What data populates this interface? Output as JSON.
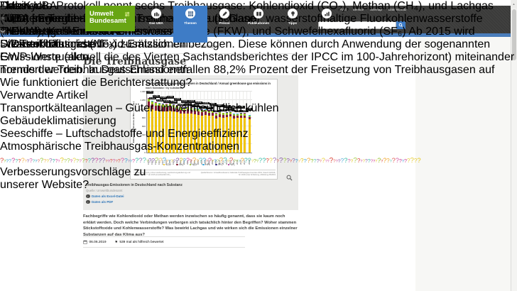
{
  "header": {
    "logo": {
      "line1": "Umwelt",
      "line2": "Bundesamt"
    },
    "top_links": [
      "Start",
      "Service",
      "Sitemap",
      "Datenschutz"
    ],
    "nav": [
      {
        "label": "Das UBA",
        "icon": "building-icon",
        "active": false
      },
      {
        "label": "Themen",
        "icon": "grid-icon",
        "active": true
      },
      {
        "label": "Presse",
        "icon": "pen-icon",
        "active": false
      },
      {
        "label": "Publikationen",
        "icon": "book-icon",
        "active": false
      },
      {
        "label": "Tipps",
        "icon": "bulb-icon",
        "active": false
      },
      {
        "label": "Daten",
        "icon": "chart-icon",
        "active": false
      }
    ]
  },
  "breadcrumb": [
    "Themen",
    "Klima | Energie",
    "Treibhausgas-Emissionen",
    "Die Treibhausgase"
  ],
  "page": {
    "title": "Die Treibhausgase"
  },
  "figure": {
    "caption_title": "Treibhausgas-Emissionen in Deutschland nach Substanz",
    "source": "Quelle: Umweltbundesamt",
    "downloads": [
      "Daten als Excel-Datei",
      "Daten als PDF"
    ]
  },
  "chart_data": {
    "type": "bar",
    "stacked": true,
    "title": "Jährliche Treibhausgas-Emissionen in Deutschland / Annual greenhouse gas emissions in",
    "subtitle": "nach Substanz / by substance",
    "ylabel": "Emissionen / Emissions (in Mio. t CO₂ equ.)",
    "ylim": [
      0,
      1400
    ],
    "yticks": [
      0,
      200,
      400,
      600,
      800,
      1000,
      1200,
      1400
    ],
    "categories": [
      "1990",
      "1991",
      "1992",
      "1993",
      "1994",
      "1995",
      "1996",
      "1997",
      "1998",
      "1999",
      "2000",
      "2001",
      "2002",
      "2003",
      "2004",
      "2005",
      "2006",
      "2007",
      "2008",
      "2009",
      "2010",
      "2011",
      "2012",
      "2013",
      "2014",
      "2015",
      "2016",
      "2017",
      "2018*"
    ],
    "totals": [
      1251,
      1194,
      1154,
      1145,
      1125,
      1120,
      1141,
      1106,
      1088,
      1052,
      1043,
      1057,
      1037,
      1030,
      1012,
      992,
      1001,
      972,
      975,
      906,
      942,
      920,
      925,
      942,
      901,
      902,
      909,
      905,
      866
    ],
    "series": [
      {
        "name": "CO₂*",
        "color": "#f0c300",
        "fraction_start": 0.836,
        "fraction_end": 0.884
      },
      {
        "name": "CH₄*",
        "color": "#871d33",
        "fraction_start": 0.096,
        "fraction_end": 0.058
      },
      {
        "name": "N₂O*",
        "color": "#95c11f",
        "fraction_start": 0.053,
        "fraction_end": 0.043
      },
      {
        "name": "HFC",
        "color": "#36a9e1",
        "fraction_start": 0.005,
        "fraction_end": 0.011
      },
      {
        "name": "PFC",
        "color": "#312783",
        "fraction_start": 0.004,
        "fraction_end": 0.002
      },
      {
        "name": "SF₆",
        "color": "#a3198b",
        "fraction_start": 0.006,
        "fraction_end": 0.004
      }
    ],
    "legend_position": "bottom",
    "grid": true,
    "footnote_left": "* Kohlendioxid (CO₂) ohne Landnutzung, Landnutzungsänderung und Forstwirtschaft; ** ab 2015 einschließlich NF₃",
    "footnote_right": "Quelle/Source: Umweltbundesamt, Nationale Treibhausgas-Inventare 2019, Stand 01/2019, für 2018 erste Schätzung; Abbildung 05/2019"
  },
  "article": {
    "intro": "Fachbegriffe wie Kohlendioxid oder Methan werden inzwischen so häufig genannt, dass sie kaum noch erklärt werden. Doch welche Verbindungen verbergen sich tatsächlich hinter den Begriffen? Woher stammen Stickstoffoxide und Kohlenwasserstoffe? Was bewirkt Lachgas und wie wirken sich die Emissionen einzelner Substanzen auf das Klima aus?",
    "date": "06.06.2019",
    "rating": "539 mal als hilfreich bewertet",
    "body": "Das Kyoto-Protokoll nennt sechs Treibhausgase: Kohlendioxid (CO₂), Methan (CH₄), und Lachgas (N₂O) sowie die fluorierten Treibhausgase (F-Gase): wasserstoffhaltige Fluorkohlenwasserstoffe (HFKW), perfluorierte Kohlenwasserstoffe (FKW), und Schwefelhexafluorid (SF₆) Ab 2015 wird Stickstofftrifluorid (NF₃) zusätzlich einbezogen. Diese können durch Anwendung der sogenannten GWP-Werte (aktuell die des Vierten Sachstandsberichtes der IPCC im 100-Jahrehorizont) miteinander normiert werden. In Deutschland entfallen 88,2% Prozent der Freisetzung von Treibhausgasen auf"
  },
  "links_box": {
    "title": "Links",
    "items": [
      "Daten: Treibhausgas-Emissionen in Deutschland",
      "Daten: Kohlendioxid-Emissionen",
      "Daten: Distickstoffoxid-Emissionen"
    ]
  },
  "sidebar": {
    "title": "Themen",
    "items": [
      {
        "label": "Klima | Energie",
        "expandable": true,
        "active": false
      },
      {
        "label": "Treibhausgas-Emissionen",
        "expandable": true,
        "active": false
      },
      {
        "label": "Die Treibhausgase",
        "expandable": false,
        "active": true
      },
      {
        "label": "Emissionsquellen",
        "expandable": false,
        "active": false
      },
      {
        "label": "Trends der Treibhausgas-Emissionen",
        "expandable": false,
        "active": false
      },
      {
        "label": "Wie funktioniert die Berichterstattung?",
        "expandable": false,
        "active": false
      }
    ]
  },
  "related": {
    "title": "Verwandte Artikel",
    "items": [
      {
        "label": "Transportkälteanlagen – Güter umweltfreundlich kühlen",
        "thumb": false
      },
      {
        "label": "Gebäudeklimatisierung",
        "thumb": true
      },
      {
        "label": "Seeschiffe – Luftschadstoffe und Energieeffizienz",
        "thumb": true
      },
      {
        "label": "Atmosphärische Treibhausgas-Konzentrationen",
        "thumb": false
      }
    ]
  },
  "promo": {
    "line1": "Verbesserungsvorschläge zu",
    "line2": "unserer Website?"
  },
  "floating_buttons": [
    {
      "label": "Mein UBA",
      "icon": "user-icon"
    },
    {
      "label": "UBA fragen",
      "icon": "question-bubble-icon"
    },
    {
      "label": "Newsletter",
      "icon": "envelope-icon"
    },
    {
      "label": "Warenkorb",
      "icon": "cart-icon"
    }
  ],
  "colors": {
    "accent_blue": "#4a7dbb",
    "active_tab": "#3e7cc6",
    "link_blue": "#2d74b7",
    "uba_green": "#68a513",
    "section_green": "#9cc41b",
    "header_dark": "#3b3b3a",
    "qmark_palette": [
      "#c92f8e",
      "#8fbf21",
      "#2f9ad0",
      "#f0a01e",
      "#7a4a9e",
      "#d9372a",
      "#2ab5a0",
      "#e3c616"
    ]
  }
}
